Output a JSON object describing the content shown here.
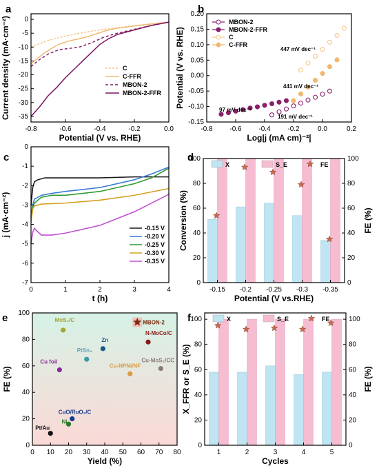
{
  "chart_data": [
    {
      "panel": "a",
      "type": "line",
      "xlabel": "Potential (V vs. RHE)",
      "ylabel": "Current density (mA·cm⁻²)",
      "xlim": [
        -0.8,
        0.0
      ],
      "ylim": [
        -37,
        2
      ],
      "xticks": [
        "-0.8",
        "-0.6",
        "-0.4",
        "-0.2",
        "0.0"
      ],
      "yticks": [
        "0",
        "-5",
        "-10",
        "-15",
        "-20",
        "-25",
        "-30",
        "-35"
      ],
      "legend_position": "bottom-right",
      "series": [
        {
          "name": "C",
          "color": "#f5c88a",
          "dash": "3,2",
          "x": [
            -0.8,
            -0.7,
            -0.6,
            -0.5,
            -0.4,
            -0.3,
            -0.2,
            -0.1,
            0.0
          ],
          "y": [
            -10.0,
            -7.6,
            -6.0,
            -4.8,
            -3.8,
            -3.0,
            -2.3,
            -1.6,
            -1.0
          ]
        },
        {
          "name": "C-FFR",
          "color": "#f0b870",
          "dash": "",
          "x": [
            -0.8,
            -0.72,
            -0.64,
            -0.58,
            -0.52,
            -0.47,
            -0.42,
            -0.36,
            -0.3,
            -0.2,
            -0.1,
            0.0
          ],
          "y": [
            -16.0,
            -12.0,
            -9.0,
            -7.8,
            -7.0,
            -6.2,
            -5.2,
            -4.0,
            -3.2,
            -2.4,
            -1.7,
            -1.0
          ]
        },
        {
          "name": "MBON-2",
          "color": "#8a1f6a",
          "dash": "4,3",
          "x": [
            -0.8,
            -0.75,
            -0.7,
            -0.64,
            -0.58,
            -0.52,
            -0.45,
            -0.38,
            -0.3,
            -0.2,
            -0.1,
            0.0
          ],
          "y": [
            -17.0,
            -14.5,
            -12.5,
            -11.0,
            -10.5,
            -10.0,
            -8.5,
            -6.5,
            -5.0,
            -3.6,
            -2.2,
            -1.0
          ]
        },
        {
          "name": "MBON-2-FFR",
          "color": "#7a1260",
          "dash": "",
          "x": [
            -0.8,
            -0.75,
            -0.7,
            -0.65,
            -0.6,
            -0.55,
            -0.5,
            -0.45,
            -0.4,
            -0.35,
            -0.3,
            -0.2,
            -0.1,
            0.0
          ],
          "y": [
            -35.0,
            -31.5,
            -27.5,
            -24.5,
            -21.0,
            -18.0,
            -15.0,
            -12.0,
            -9.0,
            -7.0,
            -5.5,
            -3.8,
            -2.2,
            -1.0
          ]
        }
      ]
    },
    {
      "panel": "b",
      "type": "scatter",
      "xlabel": "Log|j (mA cm)⁻²|",
      "ylabel": "Potential (V vs. RHE)",
      "xlim": [
        -0.8,
        0.2
      ],
      "ylim": [
        -0.15,
        0.2
      ],
      "xticks": [
        "-0.8",
        "-0.6",
        "-0.4",
        "-0.2",
        "0.0",
        "0.2"
      ],
      "yticks": [
        "0.20",
        "0.15",
        "0.10",
        "0.05",
        "0.00",
        "-0.05",
        "-0.10",
        "-0.15"
      ],
      "legend_position": "top-left",
      "series": [
        {
          "name": "MBON-2",
          "color": "#8a1f6a",
          "filled": false,
          "x": [
            -0.35,
            -0.3,
            -0.25,
            -0.2,
            -0.15,
            -0.1,
            -0.05,
            0.0,
            0.05
          ],
          "y": [
            -0.127,
            -0.117,
            -0.108,
            -0.098,
            -0.089,
            -0.079,
            -0.07,
            -0.06,
            -0.05
          ]
        },
        {
          "name": "MBON-2-FFR",
          "color": "#8a1f6a",
          "filled": true,
          "x": [
            -0.7,
            -0.65,
            -0.6,
            -0.55,
            -0.5,
            -0.45,
            -0.4,
            -0.35,
            -0.3,
            -0.25
          ],
          "y": [
            -0.125,
            -0.12,
            -0.115,
            -0.11,
            -0.105,
            -0.101,
            -0.096,
            -0.091,
            -0.086,
            -0.081
          ]
        },
        {
          "name": "C",
          "color": "#f5c88a",
          "filled": false,
          "x": [
            -0.15,
            -0.1,
            -0.05,
            0.0,
            0.05,
            0.1,
            0.15
          ],
          "y": [
            0.018,
            0.041,
            0.063,
            0.085,
            0.108,
            0.13,
            0.153
          ]
        },
        {
          "name": "C-FFR",
          "color": "#f0b870",
          "filled": true,
          "x": [
            -0.2,
            -0.15,
            -0.1,
            -0.05,
            0.0,
            0.05,
            0.1
          ],
          "y": [
            -0.081,
            -0.059,
            -0.037,
            -0.015,
            0.007,
            0.029,
            0.051
          ]
        }
      ],
      "annotations": [
        "447 mV dec⁻¹",
        "441 mV dec⁻¹",
        "97 mV dec⁻¹",
        "191 mV dec⁻¹"
      ]
    },
    {
      "panel": "c",
      "type": "line",
      "xlabel": "t (h)",
      "ylabel": "j (mA·cm⁻²)",
      "xlim": [
        0,
        4
      ],
      "ylim": [
        -7,
        0
      ],
      "xticks": [
        "0",
        "1",
        "2",
        "3",
        "4"
      ],
      "yticks": [
        "0",
        "-1",
        "-2",
        "-3",
        "-4",
        "-5",
        "-6",
        "-7"
      ],
      "legend_position": "right",
      "series": [
        {
          "name": "-0.15 V",
          "color": "#1a1a1a",
          "x": [
            0,
            0.05,
            0.1,
            0.2,
            0.4,
            1,
            2,
            3,
            4
          ],
          "y": [
            -3.0,
            -2.1,
            -1.8,
            -1.7,
            -1.6,
            -1.6,
            -1.6,
            -1.55,
            -1.55
          ]
        },
        {
          "name": "-0.20 V",
          "color": "#3a7ad5",
          "x": [
            0,
            0.05,
            0.1,
            0.3,
            0.6,
            1,
            2,
            3,
            3.5,
            4
          ],
          "y": [
            -3.6,
            -3.0,
            -2.7,
            -2.5,
            -2.4,
            -2.3,
            -2.1,
            -1.7,
            -1.4,
            -1.05
          ]
        },
        {
          "name": "-0.25 V",
          "color": "#2f9a2f",
          "x": [
            0,
            0.05,
            0.1,
            0.3,
            0.6,
            1,
            1.5,
            2,
            2.5,
            3,
            3.5,
            4
          ],
          "y": [
            -3.6,
            -3.1,
            -2.9,
            -2.6,
            -2.5,
            -2.5,
            -2.4,
            -2.3,
            -2.1,
            -1.9,
            -1.6,
            -1.1
          ]
        },
        {
          "name": "-0.30 V",
          "color": "#d4a020",
          "x": [
            0,
            0.05,
            0.1,
            0.3,
            1,
            2,
            3,
            4
          ],
          "y": [
            -3.9,
            -3.2,
            -3.05,
            -2.95,
            -2.9,
            -2.75,
            -2.5,
            -2.15
          ]
        },
        {
          "name": "-0.35 V",
          "color": "#c050d0",
          "x": [
            0,
            0.05,
            0.1,
            0.15,
            0.3,
            0.6,
            1,
            2,
            3,
            4
          ],
          "y": [
            -5.0,
            -4.4,
            -4.2,
            -4.3,
            -4.55,
            -4.55,
            -4.45,
            -4.05,
            -3.35,
            -2.45
          ]
        }
      ]
    },
    {
      "panel": "d",
      "type": "bar",
      "xlabel": "Potential (V vs.RHE)",
      "ylabel": "Conversion (%)",
      "y2label": "FE (%)",
      "categories": [
        "-0.15",
        "-0.2",
        "-0.25",
        "-0.3",
        "-0.35"
      ],
      "ylim": [
        0,
        100
      ],
      "y2lim": [
        0,
        100
      ],
      "yticks": [
        "0",
        "20",
        "40",
        "60",
        "80",
        "100"
      ],
      "y2ticks": [
        "0",
        "20",
        "40",
        "60",
        "80",
        "100"
      ],
      "legend_position": "top",
      "series": [
        {
          "name": "X",
          "color": "#bfe4f2",
          "values": [
            51,
            61,
            64,
            54,
            34
          ]
        },
        {
          "name": "S_E",
          "color": "#f6bcd2",
          "values": [
            100,
            100,
            100,
            100,
            100
          ]
        },
        {
          "name": "FE",
          "color": "#c86a50",
          "marker": "star",
          "values": [
            54,
            93,
            89,
            79,
            35
          ]
        }
      ]
    },
    {
      "panel": "e",
      "type": "scatter",
      "xlabel": "Yield (%)",
      "ylabel": "FE (%)",
      "xlim": [
        0,
        80
      ],
      "ylim": [
        0,
        100
      ],
      "xticks": [
        "0",
        "10",
        "20",
        "30",
        "40",
        "50",
        "60",
        "70",
        "80"
      ],
      "yticks": [
        "0",
        "20",
        "40",
        "60",
        "80",
        "100"
      ],
      "points": [
        {
          "label": "MoS₂/C",
          "x": 17,
          "y": 87,
          "color": "#a5a530",
          "label_color": "#a5a530"
        },
        {
          "label": "MBON-2",
          "x": 58,
          "y": 93,
          "color": "#7a2a0a",
          "label_color": "#7a2a0a",
          "star": true
        },
        {
          "label": "N-MoCo/C",
          "x": 64,
          "y": 78,
          "color": "#8a1a1a",
          "label_color": "#8a1a1a"
        },
        {
          "label": "Zn",
          "x": 39,
          "y": 73,
          "color": "#1a5a8a",
          "label_color": "#1a5a8a"
        },
        {
          "label": "PtSn₄",
          "x": 30,
          "y": 65,
          "color": "#3a9aa8",
          "label_color": "#5aa8b8"
        },
        {
          "label": "Cu foil",
          "x": 15,
          "y": 57,
          "color": "#8a2a9a",
          "label_color": "#8a2a9a"
        },
        {
          "label": "Cu-NPNi/NF",
          "x": 54,
          "y": 54,
          "color": "#d89a40",
          "label_color": "#d89a40"
        },
        {
          "label": "Cu-MoS₂/CC",
          "x": 71,
          "y": 58,
          "color": "#8a7a7a",
          "label_color": "#8a7a7a"
        },
        {
          "label": "CuO/RuO₂/C",
          "x": 22,
          "y": 20,
          "color": "#1a3a8a",
          "label_color": "#1a3a8a"
        },
        {
          "label": "Ni",
          "x": 20,
          "y": 16,
          "color": "#2a7a2a",
          "label_color": "#2a7a2a"
        },
        {
          "label": "Pt/Au",
          "x": 10,
          "y": 9,
          "color": "#111111",
          "label_color": "#111111"
        }
      ]
    },
    {
      "panel": "f",
      "type": "bar",
      "xlabel": "Cycles",
      "ylabel": "X_FFR or S_E (%)",
      "y2label": "FE (%)",
      "categories": [
        "1",
        "2",
        "3",
        "4",
        "5"
      ],
      "ylim": [
        0,
        105
      ],
      "y2lim": [
        0,
        105
      ],
      "yticks": [
        "0",
        "20",
        "40",
        "60",
        "80",
        "100"
      ],
      "y2ticks": [
        "0",
        "20",
        "40",
        "60",
        "80",
        "100"
      ],
      "legend_position": "top",
      "series": [
        {
          "name": "X",
          "color": "#bfe4f2",
          "values": [
            58,
            58,
            63,
            56,
            58
          ]
        },
        {
          "name": "S_E",
          "color": "#f6bcd2",
          "values": [
            100,
            100,
            100,
            100,
            100
          ]
        },
        {
          "name": "FE",
          "color": "#c86a50",
          "marker": "star",
          "values": [
            95,
            92,
            93,
            92,
            97
          ]
        }
      ]
    }
  ],
  "panel_letters": [
    "a",
    "b",
    "c",
    "d",
    "e",
    "f"
  ],
  "colors": {
    "axis": "#000000",
    "gradient_top": "#d6f2e6",
    "gradient_bottom": "#fbd9d6"
  }
}
